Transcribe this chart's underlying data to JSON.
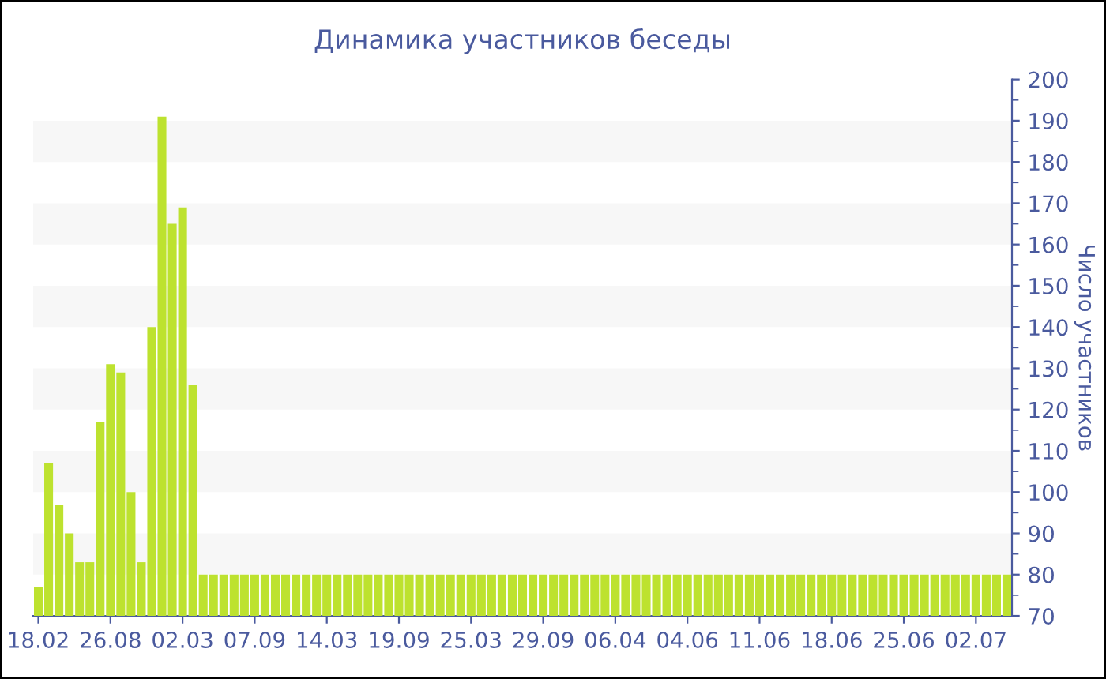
{
  "chart_data": {
    "type": "bar",
    "title": "Динамика участников беседы",
    "ylabel": "Число участников",
    "categories": [
      "18.02",
      null,
      null,
      null,
      null,
      null,
      null,
      "26.08",
      null,
      null,
      null,
      null,
      null,
      null,
      "02.03",
      null,
      null,
      null,
      null,
      null,
      null,
      "07.09",
      null,
      null,
      null,
      null,
      null,
      null,
      "14.03",
      null,
      null,
      null,
      null,
      null,
      null,
      "19.09",
      null,
      null,
      null,
      null,
      null,
      null,
      "25.03",
      null,
      null,
      null,
      null,
      null,
      null,
      "29.09",
      null,
      null,
      null,
      null,
      null,
      null,
      "06.04",
      null,
      null,
      null,
      null,
      null,
      null,
      "04.06",
      null,
      null,
      null,
      null,
      null,
      null,
      "11.06",
      null,
      null,
      null,
      null,
      null,
      null,
      "18.06",
      null,
      null,
      null,
      null,
      null,
      null,
      "25.06",
      null,
      null,
      null,
      null,
      null,
      null,
      "02.07",
      null,
      null,
      null
    ],
    "values": [
      77,
      107,
      97,
      90,
      83,
      83,
      117,
      131,
      129,
      100,
      83,
      140,
      191,
      165,
      169,
      126,
      80,
      80,
      80,
      80,
      80,
      80,
      80,
      80,
      80,
      80,
      80,
      80,
      80,
      80,
      80,
      80,
      80,
      80,
      80,
      80,
      80,
      80,
      80,
      80,
      80,
      80,
      80,
      80,
      80,
      80,
      80,
      80,
      80,
      80,
      80,
      80,
      80,
      80,
      80,
      80,
      80,
      80,
      80,
      80,
      80,
      80,
      80,
      80,
      80,
      80,
      80,
      80,
      80,
      80,
      80,
      80,
      80,
      80,
      80,
      80,
      80,
      80,
      80,
      80,
      80,
      80,
      80,
      80,
      80,
      80,
      80,
      80,
      80,
      80,
      80,
      80,
      80,
      80,
      80
    ],
    "color": "#bde22f",
    "ylim": [
      70,
      200
    ],
    "yticks": [
      70,
      80,
      90,
      100,
      110,
      120,
      130,
      140,
      150,
      160,
      170,
      180,
      190,
      200
    ],
    "bands": [
      {
        "axis": "y",
        "from": 80,
        "to": 90,
        "color": "#f7f7f7"
      },
      {
        "axis": "y",
        "from": 100,
        "to": 110,
        "color": "#f7f7f7"
      },
      {
        "axis": "y",
        "from": 120,
        "to": 130,
        "color": "#f7f7f7"
      },
      {
        "axis": "y",
        "from": 140,
        "to": 150,
        "color": "#f7f7f7"
      },
      {
        "axis": "y",
        "from": 160,
        "to": 170,
        "color": "#f7f7f7"
      },
      {
        "axis": "y",
        "from": 180,
        "to": 190,
        "color": "#f7f7f7"
      }
    ]
  }
}
